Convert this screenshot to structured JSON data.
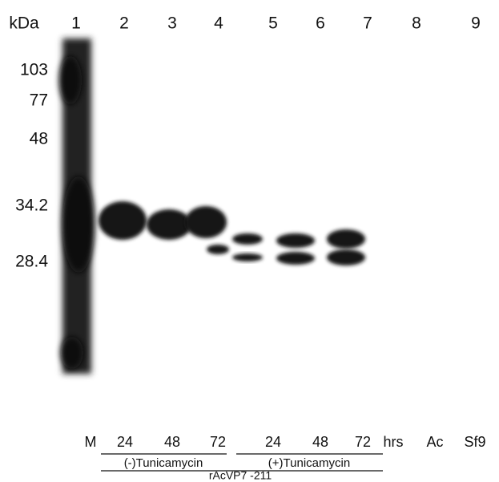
{
  "header": {
    "unit_label": "kDa",
    "lanes": [
      "1",
      "2",
      "3",
      "4",
      "5",
      "6",
      "7",
      "8",
      "9"
    ]
  },
  "markers": [
    "103",
    "77",
    "48",
    "34.2",
    "28.4"
  ],
  "lane_labels": [
    "M",
    "24",
    "48",
    "72",
    "24",
    "48",
    "72",
    "hrs",
    "Ac",
    "Sf9"
  ],
  "groups": [
    "(-)Tunicamycin",
    "(+)Tunicamycin"
  ],
  "construct": "rAcVP7 -211"
}
